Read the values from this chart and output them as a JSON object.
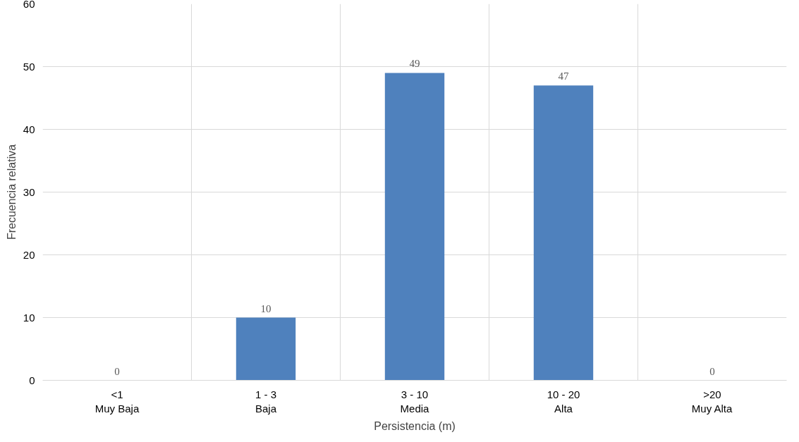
{
  "chart_data": {
    "type": "bar",
    "xlabel": "Persistencia (m)",
    "ylabel": "Frecuencia relativa",
    "categories": [
      "<1\nMuy Baja",
      "1 - 3\nBaja",
      "3 - 10\nMedia",
      "10 - 20\nAlta",
      ">20\nMuy Alta"
    ],
    "values": [
      0,
      10,
      49,
      47,
      0
    ],
    "color": "#4f81bd",
    "ylim": [
      0,
      60
    ],
    "yticks": [
      0,
      10,
      20,
      30,
      40,
      50,
      60
    ],
    "grid": true,
    "data_labels": true
  }
}
